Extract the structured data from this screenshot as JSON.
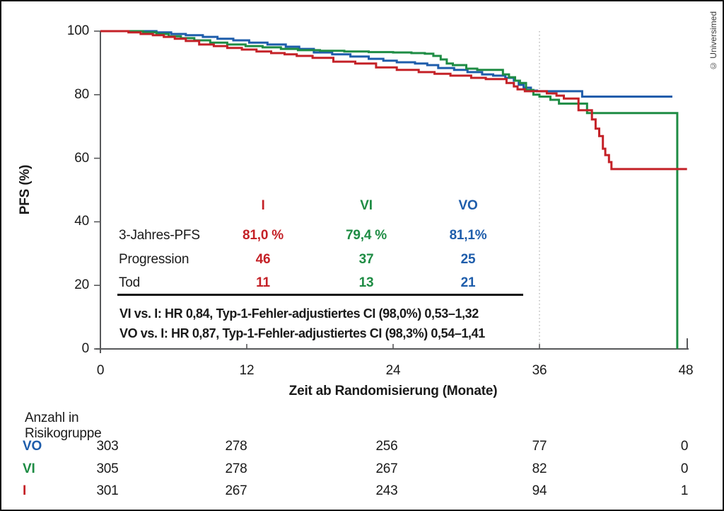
{
  "figure": {
    "credit": "© Universimed"
  },
  "chart_data": {
    "type": "line",
    "subtype": "kaplan-meier-step",
    "title": "",
    "xlabel": "Zeit ab Randomisierung (Monate)",
    "ylabel": "PFS (%)",
    "xlim": [
      0,
      48
    ],
    "ylim": [
      0,
      100
    ],
    "x_ticks": [
      0,
      12,
      24,
      36,
      48
    ],
    "y_ticks": [
      0,
      20,
      40,
      60,
      80,
      100
    ],
    "grid": false,
    "reference_line_x": 36,
    "legend_position": "none",
    "series": [
      {
        "name": "VO",
        "color": "#1e5dab",
        "points": [
          [
            0,
            100
          ],
          [
            4.6,
            99.6
          ],
          [
            5.8,
            99.1
          ],
          [
            7,
            98.7
          ],
          [
            8.4,
            98.2
          ],
          [
            9.6,
            97.6
          ],
          [
            10.9,
            97.1
          ],
          [
            12.2,
            96.4
          ],
          [
            13.7,
            95.8
          ],
          [
            15.2,
            95.1
          ],
          [
            16.3,
            94.4
          ],
          [
            17.5,
            93.3
          ],
          [
            19,
            92.7
          ],
          [
            20.5,
            92
          ],
          [
            22,
            91.3
          ],
          [
            23.2,
            90.7
          ],
          [
            24.3,
            90.2
          ],
          [
            25.8,
            89.8
          ],
          [
            26.8,
            89.3
          ],
          [
            27.7,
            88.4
          ],
          [
            29,
            87.8
          ],
          [
            30.1,
            87.1
          ],
          [
            31.3,
            86.4
          ],
          [
            32.2,
            86
          ],
          [
            33.2,
            85.3
          ],
          [
            33.9,
            84.4
          ],
          [
            34.3,
            83.1
          ],
          [
            34.7,
            82.2
          ],
          [
            35.3,
            81.3
          ],
          [
            35.8,
            81.1
          ],
          [
            39.5,
            79.4
          ],
          [
            46.9,
            79.4
          ]
        ]
      },
      {
        "name": "VI",
        "color": "#1e8c44",
        "points": [
          [
            0,
            100
          ],
          [
            3.5,
            99.6
          ],
          [
            4.6,
            99.1
          ],
          [
            5.6,
            98.4
          ],
          [
            6.6,
            97.8
          ],
          [
            7.7,
            97.1
          ],
          [
            9,
            96.4
          ],
          [
            10.4,
            95.8
          ],
          [
            11.9,
            95.3
          ],
          [
            13.3,
            94.9
          ],
          [
            14.8,
            94.4
          ],
          [
            16.2,
            94
          ],
          [
            18,
            93.8
          ],
          [
            20,
            93.6
          ],
          [
            22,
            93.4
          ],
          [
            24,
            93.3
          ],
          [
            25.5,
            93.1
          ],
          [
            26.6,
            92.9
          ],
          [
            27.3,
            92.2
          ],
          [
            27.9,
            91.1
          ],
          [
            28.4,
            89.8
          ],
          [
            28.9,
            89.3
          ],
          [
            30,
            88.2
          ],
          [
            30.9,
            87.8
          ],
          [
            33,
            86.4
          ],
          [
            33.5,
            85.5
          ],
          [
            34,
            84.4
          ],
          [
            34.4,
            83.7
          ],
          [
            34.9,
            81.5
          ],
          [
            35.5,
            80
          ],
          [
            36,
            79.4
          ],
          [
            36.9,
            78.4
          ],
          [
            37.6,
            77.2
          ],
          [
            39.9,
            74.2
          ],
          [
            47.3,
            74.2
          ],
          [
            47.3,
            0
          ]
        ]
      },
      {
        "name": "I",
        "color": "#c42127",
        "points": [
          [
            0,
            100
          ],
          [
            2.3,
            99.6
          ],
          [
            3.3,
            99.1
          ],
          [
            4.3,
            98.7
          ],
          [
            5.2,
            98.2
          ],
          [
            6.1,
            97.6
          ],
          [
            7,
            96.9
          ],
          [
            8.1,
            95.8
          ],
          [
            9.3,
            95.3
          ],
          [
            10.4,
            94.7
          ],
          [
            11.6,
            94.2
          ],
          [
            12.8,
            93.6
          ],
          [
            14,
            93.1
          ],
          [
            15.1,
            92.7
          ],
          [
            16.1,
            92.2
          ],
          [
            17.4,
            91.6
          ],
          [
            19.1,
            90.4
          ],
          [
            20.9,
            89.8
          ],
          [
            22.6,
            88.6
          ],
          [
            24.3,
            87.8
          ],
          [
            26.1,
            87.1
          ],
          [
            27.4,
            86.6
          ],
          [
            28.7,
            86
          ],
          [
            30.4,
            85.3
          ],
          [
            31.6,
            84.9
          ],
          [
            33.3,
            83.7
          ],
          [
            33.9,
            82.6
          ],
          [
            34.2,
            81.7
          ],
          [
            34.8,
            81.1
          ],
          [
            36.6,
            80.4
          ],
          [
            37.4,
            79.7
          ],
          [
            38,
            78.8
          ],
          [
            39.2,
            75.1
          ],
          [
            40.3,
            72.2
          ],
          [
            40.6,
            69.3
          ],
          [
            40.9,
            67
          ],
          [
            41.2,
            63
          ],
          [
            41.4,
            61
          ],
          [
            41.7,
            58.8
          ],
          [
            41.9,
            56.6
          ],
          [
            48.1,
            56.6
          ]
        ]
      }
    ]
  },
  "annotation": {
    "columns": [
      {
        "label": "I",
        "color": "#c42127"
      },
      {
        "label": "VI",
        "color": "#1e8c44"
      },
      {
        "label": "VO",
        "color": "#1e5dab"
      }
    ],
    "rows": [
      {
        "label": "3-Jahres-PFS",
        "values": [
          "81,0 %",
          "79,4 %",
          "81,1%"
        ]
      },
      {
        "label": "Progression",
        "values": [
          "46",
          "37",
          "25"
        ]
      },
      {
        "label": "Tod",
        "values": [
          "11",
          "13",
          "21"
        ]
      }
    ],
    "footnotes": [
      "VI vs. I: HR 0,84, Typ-1-Fehler-adjustiertes CI (98,0%) 0,53–1,32",
      "VO vs. I: HR 0,87, Typ-1-Fehler-adjustiertes CI (98,3%) 0,54–1,41"
    ]
  },
  "risk_table": {
    "title": "Anzahl in Risikogruppe",
    "time_points": [
      0,
      12,
      24,
      36,
      48
    ],
    "rows": [
      {
        "label": "VO",
        "color": "#1e5dab",
        "values": [
          "303",
          "278",
          "256",
          "77",
          "0"
        ]
      },
      {
        "label": "VI",
        "color": "#1e8c44",
        "values": [
          "305",
          "278",
          "267",
          "82",
          "0"
        ]
      },
      {
        "label": "I",
        "color": "#c42127",
        "values": [
          "301",
          "267",
          "243",
          "94",
          "1"
        ]
      }
    ]
  },
  "colors": {
    "axis": "#58595b",
    "reference_line": "#b0b0b0",
    "text": "#1a1a1a"
  }
}
